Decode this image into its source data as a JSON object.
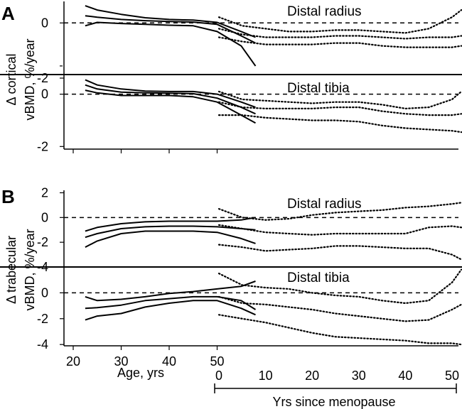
{
  "chart_data": [
    {
      "type": "line",
      "panel_letter": "A",
      "ylabel_line1": "Δ cortical",
      "ylabel_line2": "vBMD, %/year",
      "x_age_ticks": [
        20,
        30,
        40,
        50
      ],
      "xlim_age": [
        17,
        62
      ],
      "x_men_ticks": [
        0,
        10,
        20,
        30,
        40,
        50
      ],
      "xlim_menopause": [
        -1,
        53
      ],
      "grid": false,
      "subplots": [
        {
          "title": "Distal radius",
          "ylim": [
            -1.8,
            0.75
          ],
          "y_ticks": [
            0
          ],
          "y_tick_labels": [
            "0"
          ],
          "y_minor_tick": -1.5,
          "reference_line": 0,
          "premenopausal_age_x": [
            22.5,
            25,
            30,
            35,
            40,
            45,
            50,
            55,
            58
          ],
          "premenopausal_series": [
            {
              "role": "upper",
              "values": [
                0.6,
                0.45,
                0.3,
                0.18,
                0.12,
                0.1,
                0.02,
                -0.3,
                -0.5
              ]
            },
            {
              "role": "mean",
              "values": [
                0.25,
                0.2,
                0.12,
                0.08,
                0.05,
                0.03,
                -0.05,
                -0.45,
                -0.7
              ]
            },
            {
              "role": "lower",
              "values": [
                -0.1,
                0.02,
                -0.02,
                -0.05,
                -0.08,
                -0.1,
                -0.3,
                -0.8,
                -1.5
              ]
            }
          ],
          "postmenopausal_years_x": [
            0,
            5,
            10,
            15,
            20,
            25,
            30,
            35,
            40,
            45,
            50,
            52
          ],
          "postmenopausal_series": [
            {
              "role": "upper",
              "values": [
                0.2,
                -0.1,
                -0.2,
                -0.3,
                -0.3,
                -0.25,
                -0.25,
                -0.3,
                -0.35,
                -0.2,
                0.2,
                0.45
              ]
            },
            {
              "role": "mean",
              "values": [
                -0.2,
                -0.4,
                -0.5,
                -0.5,
                -0.5,
                -0.45,
                -0.45,
                -0.5,
                -0.55,
                -0.5,
                -0.5,
                -0.45
              ]
            },
            {
              "role": "lower",
              "values": [
                -0.5,
                -0.65,
                -0.75,
                -0.75,
                -0.75,
                -0.7,
                -0.7,
                -0.8,
                -0.85,
                -0.85,
                -0.85,
                -0.8
              ]
            }
          ]
        },
        {
          "title": "Distal tibia",
          "ylim": [
            -2.1,
            0.75
          ],
          "y_ticks": [
            -2,
            0,
            -2
          ],
          "y_tick_labels": [
            "-2",
            "0",
            "-2"
          ],
          "reference_line": 0,
          "premenopausal_age_x": [
            22.5,
            25,
            30,
            35,
            40,
            45,
            50,
            55,
            58
          ],
          "premenopausal_series": [
            {
              "role": "upper",
              "values": [
                0.55,
                0.35,
                0.2,
                0.12,
                0.1,
                0.1,
                0.0,
                -0.3,
                -0.5
              ]
            },
            {
              "role": "mean",
              "values": [
                0.35,
                0.2,
                0.08,
                0.05,
                0.04,
                0.02,
                -0.15,
                -0.5,
                -0.75
              ]
            },
            {
              "role": "lower",
              "values": [
                0.15,
                0.05,
                -0.05,
                -0.05,
                -0.05,
                -0.1,
                -0.3,
                -0.8,
                -1.1
              ]
            }
          ],
          "postmenopausal_years_x": [
            0,
            5,
            10,
            15,
            20,
            25,
            30,
            35,
            40,
            45,
            50,
            52
          ],
          "postmenopausal_series": [
            {
              "role": "upper",
              "values": [
                0.1,
                -0.2,
                -0.25,
                -0.3,
                -0.35,
                -0.3,
                -0.3,
                -0.4,
                -0.55,
                -0.5,
                -0.2,
                0.1
              ]
            },
            {
              "role": "mean",
              "values": [
                -0.3,
                -0.5,
                -0.55,
                -0.55,
                -0.55,
                -0.5,
                -0.5,
                -0.65,
                -0.75,
                -0.8,
                -0.8,
                -0.75
              ]
            },
            {
              "role": "lower",
              "values": [
                -0.8,
                -0.8,
                -0.9,
                -0.95,
                -1.0,
                -1.0,
                -1.05,
                -1.2,
                -1.3,
                -1.35,
                -1.4,
                -1.45
              ]
            }
          ]
        }
      ]
    },
    {
      "type": "line",
      "panel_letter": "B",
      "ylabel_line1": "Δ trabecular",
      "ylabel_line2": "vBMD, %/year",
      "xlabel_age": "Age, yrs",
      "xlabel_menopause": "Yrs since menopause",
      "x_age_ticks": [
        20,
        30,
        40,
        50
      ],
      "xlim_age": [
        17,
        62
      ],
      "x_men_ticks": [
        0,
        10,
        20,
        30,
        40,
        50
      ],
      "x_men_tick_labels": [
        "0",
        "10",
        "20",
        "30",
        "40",
        "50"
      ],
      "xlim_menopause": [
        -1,
        53
      ],
      "grid": false,
      "subplots": [
        {
          "title": "Distal radius",
          "ylim": [
            -4,
            2.2
          ],
          "y_ticks": [
            2,
            0,
            -2,
            -4
          ],
          "y_tick_labels": [
            "2",
            "0",
            "-2",
            "-4"
          ],
          "reference_line": 0,
          "premenopausal_age_x": [
            22.5,
            25,
            30,
            35,
            40,
            45,
            50,
            55,
            58
          ],
          "premenopausal_series": [
            {
              "role": "upper",
              "values": [
                -1.1,
                -0.8,
                -0.5,
                -0.35,
                -0.3,
                -0.3,
                -0.3,
                -0.2,
                0.0
              ]
            },
            {
              "role": "mean",
              "values": [
                -1.6,
                -1.3,
                -0.9,
                -0.75,
                -0.7,
                -0.7,
                -0.75,
                -0.9,
                -1.0
              ]
            },
            {
              "role": "lower",
              "values": [
                -2.4,
                -1.9,
                -1.3,
                -1.1,
                -1.1,
                -1.1,
                -1.2,
                -1.7,
                -2.1
              ]
            }
          ],
          "postmenopausal_years_x": [
            0,
            5,
            10,
            15,
            20,
            25,
            30,
            35,
            40,
            45,
            50,
            52
          ],
          "postmenopausal_series": [
            {
              "role": "upper",
              "values": [
                0.7,
                0.0,
                -0.2,
                -0.1,
                0.2,
                0.4,
                0.5,
                0.6,
                0.8,
                0.9,
                1.1,
                1.2
              ]
            },
            {
              "role": "mean",
              "values": [
                -0.6,
                -0.9,
                -1.2,
                -1.3,
                -1.4,
                -1.3,
                -1.3,
                -1.3,
                -1.3,
                -0.8,
                -0.7,
                -0.8
              ]
            },
            {
              "role": "lower",
              "values": [
                -2.2,
                -2.4,
                -2.7,
                -2.6,
                -2.5,
                -2.3,
                -2.3,
                -2.4,
                -2.5,
                -2.5,
                -3.0,
                -3.4
              ]
            }
          ]
        },
        {
          "title": "Distal tibia",
          "ylim": [
            -4.1,
            2.0
          ],
          "y_ticks": [
            0,
            -2,
            -4
          ],
          "y_tick_labels": [
            "0",
            "-2",
            "-4"
          ],
          "reference_line": 0,
          "premenopausal_age_x": [
            22.5,
            25,
            30,
            35,
            40,
            45,
            50,
            55,
            58
          ],
          "premenopausal_series": [
            {
              "role": "upper",
              "values": [
                -0.3,
                -0.6,
                -0.5,
                -0.3,
                -0.05,
                0.1,
                0.3,
                0.5,
                0.9
              ]
            },
            {
              "role": "mean",
              "values": [
                -1.2,
                -1.15,
                -0.95,
                -0.6,
                -0.45,
                -0.3,
                -0.3,
                -0.6,
                -1.3
              ]
            },
            {
              "role": "lower",
              "values": [
                -2.1,
                -1.8,
                -1.6,
                -1.1,
                -0.8,
                -0.6,
                -0.6,
                -1.2,
                -1.7
              ]
            }
          ],
          "postmenopausal_years_x": [
            0,
            5,
            10,
            15,
            20,
            25,
            30,
            35,
            40,
            45,
            50,
            52
          ],
          "postmenopausal_series": [
            {
              "role": "upper",
              "values": [
                1.5,
                0.6,
                0.4,
                0.3,
                0.0,
                -0.2,
                -0.3,
                -0.6,
                -0.8,
                -0.6,
                0.8,
                1.8
              ]
            },
            {
              "role": "mean",
              "values": [
                -0.3,
                -0.8,
                -0.9,
                -1.1,
                -1.3,
                -1.6,
                -1.8,
                -2.0,
                -2.2,
                -2.1,
                -1.3,
                -0.9
              ]
            },
            {
              "role": "lower",
              "values": [
                -1.7,
                -2.0,
                -2.3,
                -2.7,
                -3.1,
                -3.4,
                -3.5,
                -3.6,
                -3.7,
                -3.9,
                -3.9,
                -4.0
              ]
            }
          ]
        }
      ]
    }
  ]
}
